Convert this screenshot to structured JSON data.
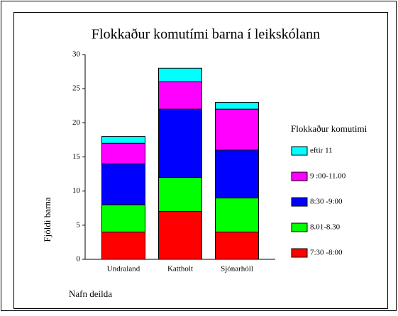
{
  "chart_data": {
    "type": "stacked-bar",
    "title": "Flokkaður komutími barna í  leikskólann",
    "y_label": "Fjöldi barna",
    "x_label": "Nafn deilda",
    "legend_title": "Flokkaður komutimi",
    "categories": [
      "Undraland",
      "Kattholt",
      "Sjónarhóll"
    ],
    "series": [
      {
        "name": "7:30 -8:00",
        "color": "#ff0000",
        "values": [
          4,
          7,
          4
        ]
      },
      {
        "name": "8.01-8.30",
        "color": "#00ff00",
        "values": [
          4,
          5,
          5
        ]
      },
      {
        "name": "8:30 -9:00",
        "color": "#0000ff",
        "values": [
          6,
          10,
          7
        ]
      },
      {
        "name": "9 :00-11.00",
        "color": "#ff00ff",
        "values": [
          3,
          4,
          6
        ]
      },
      {
        "name": "eftir 11",
        "color": "#00ffff",
        "values": [
          1,
          2,
          1
        ]
      }
    ],
    "ylim": [
      0,
      30
    ],
    "yticks": [
      0,
      5,
      10,
      15,
      20,
      25,
      30
    ],
    "legend": "right"
  }
}
